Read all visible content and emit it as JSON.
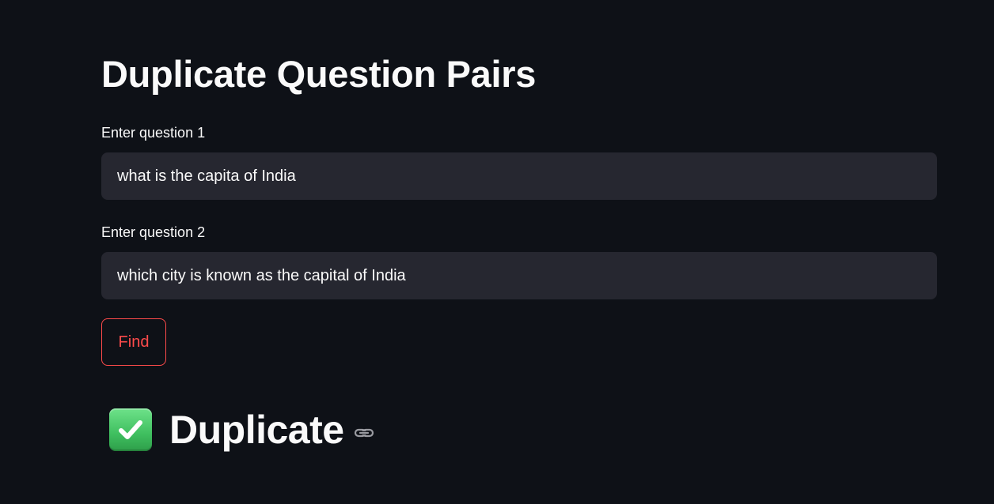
{
  "page": {
    "title": "Duplicate Question Pairs"
  },
  "question1": {
    "label": "Enter question 1",
    "value": "what is the capita of India"
  },
  "question2": {
    "label": "Enter question 2",
    "value": "which city is known as the capital of India"
  },
  "find_button": {
    "label": "Find"
  },
  "result": {
    "icon": "check-mark-button-icon",
    "text": "Duplicate",
    "anchor_icon": "link-icon"
  },
  "colors": {
    "background": "#0e1117",
    "input_background": "#262730",
    "text": "#fafafa",
    "accent": "#ff4b4b",
    "check_green": "#3fbf5f"
  }
}
